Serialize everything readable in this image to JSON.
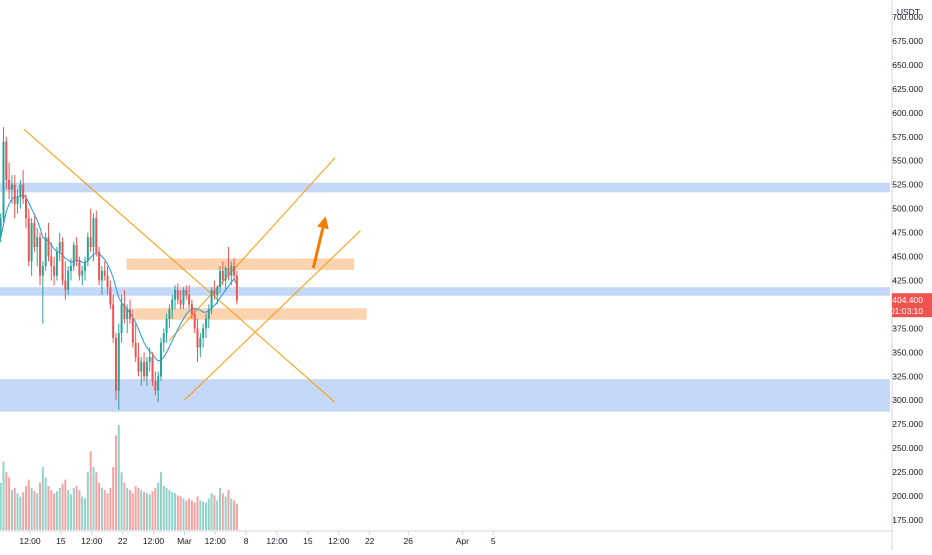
{
  "chart_data": {
    "type": "candlestick",
    "currency": "USDT",
    "ylim": [
      165,
      710
    ],
    "y_ticks": [
      175,
      200,
      225,
      250,
      275,
      300,
      325,
      350,
      375,
      400,
      425,
      450,
      475,
      500,
      525,
      550,
      575,
      600,
      625,
      650,
      675,
      700
    ],
    "y_tick_labels": [
      "175.000",
      "200.000",
      "225.000",
      "250.000",
      "275.000",
      "300.000",
      "325.000",
      "350.000",
      "375.000",
      "400.000",
      "425.000",
      "450.000",
      "475.000",
      "500.000",
      "525.000",
      "550.000",
      "575.000",
      "600.000",
      "625.000",
      "650.000",
      "675.000",
      "700.000"
    ],
    "x_ticks": [
      {
        "label": "12:00",
        "pos": 0
      },
      {
        "label": "15",
        "pos": 4
      },
      {
        "label": "12:00",
        "pos": 8
      },
      {
        "label": "22",
        "pos": 12
      },
      {
        "label": "12:00",
        "pos": 16
      },
      {
        "label": "Mar",
        "pos": 20
      },
      {
        "label": "12:00",
        "pos": 24
      },
      {
        "label": "8",
        "pos": 28
      },
      {
        "label": "12:00",
        "pos": 32
      },
      {
        "label": "15",
        "pos": 36
      },
      {
        "label": "12:00",
        "pos": 40
      },
      {
        "label": "22",
        "pos": 44
      },
      {
        "label": "26",
        "pos": 49
      },
      {
        "label": "Apr",
        "pos": 56
      },
      {
        "label": "5",
        "pos": 60
      }
    ],
    "last_price": "404.400",
    "countdown": "01:03:10",
    "colors": {
      "up": "#26a69a",
      "down": "#ef5350",
      "vol_up": "#8fd3cb",
      "vol_down": "#f5a3a1",
      "ma": "#2196f3",
      "trend": "#ff9800",
      "blue_zone": "#c5d8f7",
      "orange_zone": "#fcd3b0",
      "arrow": "#f57c00",
      "price_tag": "#ef5350",
      "axis_text": "#131722",
      "axis_border": "#d1d4dc"
    },
    "blue_zones": [
      {
        "from_price": 517,
        "to_price": 527
      },
      {
        "from_price": 409,
        "to_price": 418
      },
      {
        "from_price": 288,
        "to_price": 322
      }
    ],
    "orange_zones": [
      {
        "from_price": 436,
        "to_price": 448,
        "x_from": 12.5,
        "x_to": 42
      },
      {
        "from_price": 384,
        "to_price": 396,
        "x_from": 13.5,
        "x_to": 43.6
      }
    ],
    "trend_lines": [
      {
        "x1": -0.8,
        "p1": 583,
        "x2": 39.5,
        "p2": 298
      },
      {
        "x1": 20,
        "p1": 300,
        "x2": 42.8,
        "p2": 477
      },
      {
        "x1": 18,
        "p1": 362,
        "x2": 39.5,
        "p2": 553
      }
    ],
    "arrow": {
      "x1": 36.7,
      "p1": 438,
      "x2": 38.3,
      "p2": 492
    },
    "candles": [
      [
        470,
        495,
        465,
        490,
        45
      ],
      [
        490,
        585,
        485,
        570,
        65
      ],
      [
        570,
        575,
        520,
        530,
        55
      ],
      [
        530,
        548,
        510,
        520,
        50
      ],
      [
        520,
        535,
        505,
        525,
        38
      ],
      [
        525,
        535,
        490,
        505,
        40
      ],
      [
        505,
        520,
        495,
        512,
        35
      ],
      [
        512,
        530,
        500,
        525,
        32
      ],
      [
        525,
        540,
        505,
        510,
        36
      ],
      [
        510,
        515,
        480,
        490,
        42
      ],
      [
        490,
        500,
        440,
        445,
        48
      ],
      [
        445,
        490,
        430,
        485,
        40
      ],
      [
        485,
        492,
        455,
        460,
        37
      ],
      [
        460,
        480,
        440,
        470,
        35
      ],
      [
        470,
        475,
        420,
        430,
        45
      ],
      [
        430,
        445,
        380,
        440,
        60
      ],
      [
        440,
        475,
        435,
        470,
        50
      ],
      [
        470,
        485,
        445,
        450,
        42
      ],
      [
        450,
        465,
        425,
        440,
        38
      ],
      [
        440,
        450,
        420,
        430,
        35
      ],
      [
        430,
        460,
        425,
        455,
        37
      ],
      [
        455,
        475,
        445,
        465,
        40
      ],
      [
        465,
        470,
        420,
        425,
        44
      ],
      [
        425,
        445,
        405,
        415,
        48
      ],
      [
        415,
        440,
        410,
        435,
        38
      ],
      [
        435,
        448,
        425,
        440,
        34
      ],
      [
        440,
        465,
        435,
        462,
        40
      ],
      [
        462,
        470,
        440,
        445,
        42
      ],
      [
        445,
        450,
        425,
        430,
        38
      ],
      [
        430,
        440,
        420,
        435,
        32
      ],
      [
        435,
        450,
        425,
        445,
        30
      ],
      [
        445,
        475,
        440,
        470,
        55
      ],
      [
        470,
        500,
        455,
        460,
        75
      ],
      [
        460,
        495,
        445,
        490,
        60
      ],
      [
        490,
        498,
        450,
        455,
        55
      ],
      [
        455,
        460,
        420,
        425,
        45
      ],
      [
        425,
        440,
        410,
        435,
        40
      ],
      [
        435,
        445,
        425,
        430,
        38
      ],
      [
        430,
        440,
        410,
        418,
        35
      ],
      [
        418,
        425,
        395,
        400,
        40
      ],
      [
        400,
        410,
        360,
        365,
        60
      ],
      [
        365,
        370,
        300,
        310,
        90
      ],
      [
        310,
        380,
        290,
        370,
        100
      ],
      [
        370,
        410,
        360,
        400,
        55
      ],
      [
        400,
        415,
        380,
        385,
        45
      ],
      [
        385,
        400,
        370,
        395,
        40
      ],
      [
        395,
        405,
        380,
        385,
        38
      ],
      [
        385,
        395,
        355,
        360,
        35
      ],
      [
        360,
        380,
        340,
        345,
        42
      ],
      [
        345,
        360,
        325,
        330,
        40
      ],
      [
        330,
        345,
        315,
        340,
        38
      ],
      [
        340,
        350,
        320,
        325,
        36
      ],
      [
        325,
        345,
        315,
        340,
        35
      ],
      [
        340,
        355,
        330,
        345,
        34
      ],
      [
        345,
        350,
        315,
        320,
        37
      ],
      [
        320,
        330,
        305,
        310,
        40
      ],
      [
        310,
        330,
        298,
        325,
        45
      ],
      [
        325,
        365,
        320,
        360,
        55
      ],
      [
        360,
        375,
        350,
        370,
        42
      ],
      [
        370,
        390,
        360,
        385,
        40
      ],
      [
        385,
        400,
        375,
        395,
        38
      ],
      [
        395,
        410,
        385,
        405,
        36
      ],
      [
        405,
        420,
        395,
        415,
        35
      ],
      [
        415,
        422,
        400,
        405,
        33
      ],
      [
        405,
        415,
        395,
        400,
        32
      ],
      [
        400,
        418,
        395,
        415,
        30
      ],
      [
        415,
        420,
        405,
        410,
        28
      ],
      [
        410,
        420,
        395,
        400,
        30
      ],
      [
        400,
        405,
        385,
        390,
        28
      ],
      [
        390,
        395,
        370,
        375,
        26
      ],
      [
        375,
        385,
        340,
        355,
        32
      ],
      [
        355,
        370,
        345,
        365,
        28
      ],
      [
        365,
        380,
        355,
        375,
        27
      ],
      [
        375,
        390,
        365,
        385,
        26
      ],
      [
        385,
        400,
        375,
        395,
        30
      ],
      [
        395,
        418,
        390,
        415,
        35
      ],
      [
        415,
        425,
        405,
        410,
        33
      ],
      [
        410,
        420,
        400,
        418,
        28
      ],
      [
        418,
        440,
        412,
        435,
        40
      ],
      [
        435,
        445,
        420,
        425,
        35
      ],
      [
        425,
        440,
        415,
        438,
        32
      ],
      [
        438,
        460,
        425,
        430,
        38
      ],
      [
        430,
        445,
        420,
        440,
        30
      ],
      [
        440,
        448,
        425,
        430,
        28
      ],
      [
        430,
        435,
        400,
        404,
        25
      ]
    ],
    "ma": [
      470,
      483,
      497,
      505,
      510,
      512,
      512,
      513,
      514,
      512,
      506,
      500,
      494,
      488,
      480,
      470,
      468,
      466,
      462,
      458,
      455,
      454,
      452,
      448,
      446,
      444,
      445,
      446,
      446,
      444,
      443,
      446,
      449,
      452,
      454,
      453,
      450,
      447,
      442,
      436,
      428,
      417,
      407,
      402,
      398,
      395,
      391,
      387,
      381,
      374,
      367,
      360,
      355,
      351,
      348,
      344,
      341,
      342,
      345,
      350,
      356,
      362,
      368,
      374,
      380,
      385,
      390,
      393,
      395,
      396,
      395,
      394,
      392,
      392,
      393,
      396,
      399,
      402,
      407,
      411,
      415,
      419,
      423,
      427,
      420
    ]
  }
}
